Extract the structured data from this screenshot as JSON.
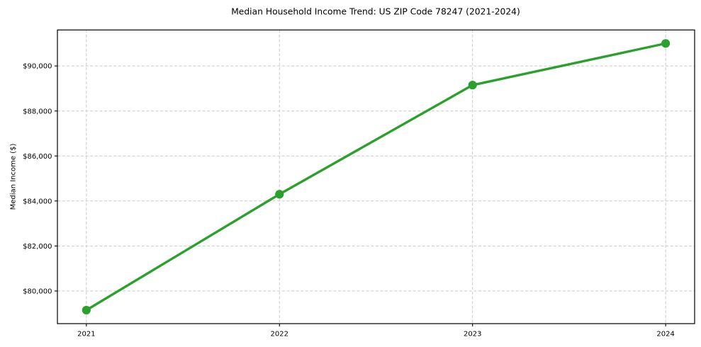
{
  "chart_data": {
    "type": "line",
    "title": "Median Household Income Trend: US ZIP Code 78247 (2021-2024)",
    "xlabel": "",
    "ylabel": "Median Income ($)",
    "categories": [
      2021,
      2022,
      2023,
      2024
    ],
    "values": [
      79150,
      84300,
      89150,
      91000
    ],
    "xtick_labels": [
      "2021",
      "2022",
      "2023",
      "2024"
    ],
    "yticks": [
      80000,
      82000,
      84000,
      86000,
      88000,
      90000
    ],
    "ytick_labels": [
      "$80,000",
      "$82,000",
      "$84,000",
      "$86,000",
      "$88,000",
      "$90,000"
    ],
    "xlim": [
      2020.85,
      2024.15
    ],
    "ylim": [
      78550,
      91600
    ],
    "grid": true,
    "grid_linestyle": "dashed",
    "legend_position": "none",
    "line_color": "#2ca02c",
    "marker": "circle"
  },
  "colors": {
    "line": "#2ca02c",
    "marker": "#2ca02c",
    "grid": "#c9c9c9",
    "spine": "#000000",
    "tick": "#000000",
    "text": "#000000",
    "background": "#ffffff"
  }
}
